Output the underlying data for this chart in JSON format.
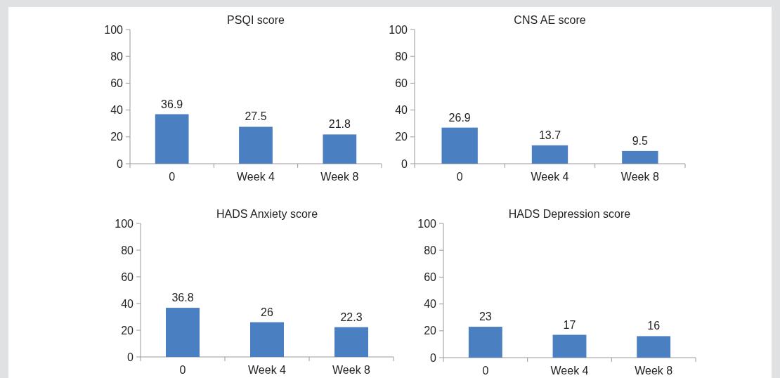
{
  "chart_data": [
    {
      "type": "bar",
      "title": "PSQI score",
      "categories": [
        "0",
        "Week 4",
        "Week 8"
      ],
      "values": [
        36.9,
        27.5,
        21.8
      ],
      "color": "#4a7fc1",
      "ylim": [
        0,
        100
      ],
      "yticks": [
        0,
        20,
        40,
        60,
        80,
        100
      ],
      "data_labels": true
    },
    {
      "type": "bar",
      "title": "CNS AE score",
      "categories": [
        "0",
        "Week 4",
        "Week 8"
      ],
      "values": [
        26.9,
        13.7,
        9.5
      ],
      "color": "#4a7fc1",
      "ylim": [
        0,
        100
      ],
      "yticks": [
        0,
        20,
        40,
        60,
        80,
        100
      ],
      "data_labels": true
    },
    {
      "type": "bar",
      "title": "HADS Anxiety score",
      "categories": [
        "0",
        "Week 4",
        "Week 8"
      ],
      "values": [
        36.8,
        26,
        22.3
      ],
      "color": "#4a7fc1",
      "ylim": [
        0,
        100
      ],
      "yticks": [
        0,
        20,
        40,
        60,
        80,
        100
      ],
      "data_labels": true
    },
    {
      "type": "bar",
      "title": "HADS Depression score",
      "categories": [
        "0",
        "Week 4",
        "Week 8"
      ],
      "values": [
        23,
        17,
        16
      ],
      "color": "#4a7fc1",
      "ylim": [
        0,
        100
      ],
      "yticks": [
        0,
        20,
        40,
        60,
        80,
        100
      ],
      "data_labels": true
    }
  ]
}
